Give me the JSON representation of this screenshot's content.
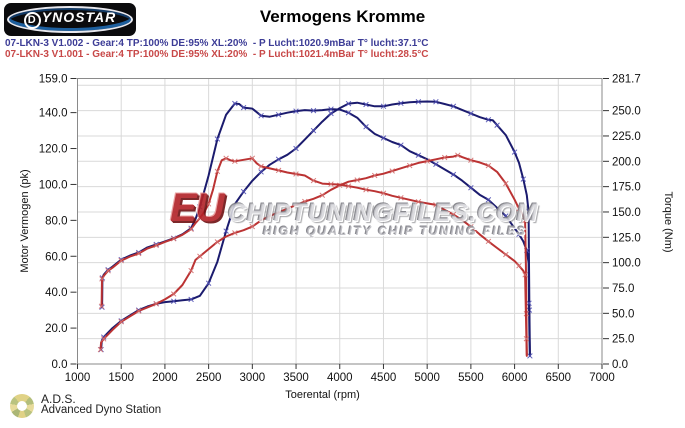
{
  "header": {
    "brand_first_letter": "D",
    "brand_rest": "YNOSTAR",
    "title": "Vermogens Kromme"
  },
  "legend": [
    {
      "text": "07-LKN-3 V1.002 - Gear:4 TP:100% DE:95% XL:20%  - P Lucht:1020.9mBar T° lucht:37.1°C",
      "color": "#3c3c96"
    },
    {
      "text": "07-LKN-3 V1.001 - Gear:4 TP:100% DE:95% XL:20%  - P Lucht:1021.4mBar T° lucht:28.5°C",
      "color": "#c84848"
    }
  ],
  "watermark": {
    "prefix": "EU",
    "main": "CHIPTUNINGFILES.COM",
    "sub": "HIGH QUALITY CHIP TUNING FILES"
  },
  "footer": {
    "abbr": "A.D.S.",
    "name": "Advanced Dyno Station"
  },
  "chart_data": {
    "type": "line",
    "title": "Vermogens Kromme",
    "xlabel": "Toerental (rpm)",
    "xlim": [
      1000,
      7000
    ],
    "x_ticks": [
      1000,
      1500,
      2000,
      2500,
      3000,
      3500,
      4000,
      4500,
      5000,
      5500,
      6000,
      6500,
      7000
    ],
    "left_axis": {
      "label": "Motor Vermogen (pk)",
      "max": 159,
      "ticks": [
        0,
        20,
        40,
        60,
        80,
        100,
        120,
        140,
        159
      ]
    },
    "right_axis": {
      "label": "Torque (Nm)",
      "max": 281.7,
      "ticks": [
        0,
        25,
        50,
        75,
        100,
        125,
        150,
        175,
        200,
        225,
        250,
        281.7
      ]
    },
    "grid_right_values": [
      25,
      50,
      75,
      100,
      125,
      150,
      175,
      200,
      225,
      250,
      275
    ],
    "grid_on": true,
    "legend_position": "top-left-above-plot",
    "colors": {
      "run1": "#1b1b6e",
      "run2": "#bb3333",
      "run1_marker": "#5050b4",
      "run2_marker": "#d47070",
      "grid": "#d9d9d9",
      "border": "#8a8a8a",
      "tick": "#333333",
      "label": "#111111"
    },
    "series": [
      {
        "name": "V1.002-power",
        "axis": "left",
        "unit": "pk",
        "color": "#1b1b6e",
        "marker_color": "#5050b4",
        "points": [
          [
            1270,
            8
          ],
          [
            1278,
            13
          ],
          [
            1300,
            15
          ],
          [
            1400,
            20
          ],
          [
            1500,
            24
          ],
          [
            1600,
            27
          ],
          [
            1700,
            30
          ],
          [
            1800,
            32
          ],
          [
            1900,
            33.5
          ],
          [
            2000,
            34.5
          ],
          [
            2100,
            35
          ],
          [
            2200,
            35.5
          ],
          [
            2300,
            36
          ],
          [
            2400,
            38
          ],
          [
            2500,
            45
          ],
          [
            2600,
            57
          ],
          [
            2700,
            74
          ],
          [
            2800,
            89
          ],
          [
            2900,
            96
          ],
          [
            3000,
            102
          ],
          [
            3100,
            107
          ],
          [
            3200,
            111
          ],
          [
            3300,
            114
          ],
          [
            3400,
            116.5
          ],
          [
            3500,
            120
          ],
          [
            3600,
            125
          ],
          [
            3700,
            130
          ],
          [
            3800,
            135
          ],
          [
            3900,
            139.5
          ],
          [
            4000,
            142.5
          ],
          [
            4100,
            145
          ],
          [
            4200,
            145.5
          ],
          [
            4300,
            144.5
          ],
          [
            4400,
            143.5
          ],
          [
            4500,
            143.5
          ],
          [
            4600,
            144.5
          ],
          [
            4700,
            145.2
          ],
          [
            4800,
            145.8
          ],
          [
            4900,
            146
          ],
          [
            5000,
            146.2
          ],
          [
            5100,
            146
          ],
          [
            5200,
            144.8
          ],
          [
            5300,
            143.5
          ],
          [
            5400,
            141.5
          ],
          [
            5500,
            139.5
          ],
          [
            5600,
            137.5
          ],
          [
            5700,
            136
          ],
          [
            5750,
            135.8
          ],
          [
            5800,
            133
          ],
          [
            5900,
            127.5
          ],
          [
            6000,
            118
          ],
          [
            6050,
            112
          ],
          [
            6100,
            103
          ],
          [
            6140,
            94
          ],
          [
            6160,
            85
          ],
          [
            6165,
            55
          ],
          [
            6170,
            30
          ],
          [
            6175,
            6
          ]
        ]
      },
      {
        "name": "V1.002-torque",
        "axis": "right",
        "unit": "Nm",
        "color": "#1b1b6e",
        "marker_color": "#5050b4",
        "points": [
          [
            1280,
            56
          ],
          [
            1282,
            64
          ],
          [
            1285,
            85
          ],
          [
            1300,
            88
          ],
          [
            1350,
            93
          ],
          [
            1400,
            96
          ],
          [
            1500,
            103
          ],
          [
            1600,
            107
          ],
          [
            1700,
            110
          ],
          [
            1800,
            115
          ],
          [
            1900,
            118
          ],
          [
            2000,
            121
          ],
          [
            2100,
            124
          ],
          [
            2200,
            128
          ],
          [
            2300,
            134
          ],
          [
            2350,
            143
          ],
          [
            2400,
            155
          ],
          [
            2500,
            186
          ],
          [
            2600,
            222
          ],
          [
            2700,
            246
          ],
          [
            2800,
            257
          ],
          [
            2850,
            256.5
          ],
          [
            2900,
            253
          ],
          [
            3000,
            252
          ],
          [
            3100,
            245
          ],
          [
            3200,
            244
          ],
          [
            3300,
            246
          ],
          [
            3400,
            248
          ],
          [
            3500,
            249.5
          ],
          [
            3600,
            250.5
          ],
          [
            3700,
            250
          ],
          [
            3800,
            250.5
          ],
          [
            3900,
            251.5
          ],
          [
            4000,
            251
          ],
          [
            4100,
            248
          ],
          [
            4200,
            243
          ],
          [
            4300,
            234
          ],
          [
            4400,
            227
          ],
          [
            4500,
            223
          ],
          [
            4600,
            219
          ],
          [
            4700,
            216
          ],
          [
            4800,
            210
          ],
          [
            4900,
            206
          ],
          [
            5000,
            202
          ],
          [
            5100,
            197
          ],
          [
            5200,
            192
          ],
          [
            5300,
            187
          ],
          [
            5400,
            181
          ],
          [
            5500,
            174
          ],
          [
            5600,
            167
          ],
          [
            5700,
            162
          ],
          [
            5800,
            154
          ],
          [
            5900,
            146
          ],
          [
            6000,
            134
          ],
          [
            6050,
            128
          ],
          [
            6100,
            121
          ],
          [
            6140,
            112
          ],
          [
            6160,
            100
          ],
          [
            6165,
            60
          ],
          [
            6170,
            30
          ],
          [
            6175,
            8
          ]
        ]
      },
      {
        "name": "V1.001-power",
        "axis": "left",
        "unit": "pk",
        "color": "#bb3333",
        "marker_color": "#d47070",
        "points": [
          [
            1263,
            8
          ],
          [
            1270,
            12
          ],
          [
            1300,
            14
          ],
          [
            1400,
            19
          ],
          [
            1500,
            23.5
          ],
          [
            1600,
            26.5
          ],
          [
            1700,
            29.5
          ],
          [
            1800,
            31.5
          ],
          [
            1900,
            33.5
          ],
          [
            2000,
            36
          ],
          [
            2100,
            39
          ],
          [
            2200,
            44
          ],
          [
            2300,
            52
          ],
          [
            2350,
            58
          ],
          [
            2400,
            60
          ],
          [
            2500,
            64
          ],
          [
            2600,
            68
          ],
          [
            2700,
            71
          ],
          [
            2800,
            73
          ],
          [
            2900,
            74.5
          ],
          [
            3000,
            76.5
          ],
          [
            3100,
            80
          ],
          [
            3200,
            82.5
          ],
          [
            3300,
            84.5
          ],
          [
            3400,
            86.5
          ],
          [
            3500,
            88.5
          ],
          [
            3600,
            90.5
          ],
          [
            3700,
            92
          ],
          [
            3800,
            94
          ],
          [
            3900,
            97
          ],
          [
            4000,
            99.5
          ],
          [
            4100,
            101.5
          ],
          [
            4200,
            102.5
          ],
          [
            4300,
            103.5
          ],
          [
            4400,
            105
          ],
          [
            4500,
            106
          ],
          [
            4600,
            107.5
          ],
          [
            4700,
            109
          ],
          [
            4800,
            110.5
          ],
          [
            4900,
            112
          ],
          [
            5000,
            113
          ],
          [
            5100,
            114
          ],
          [
            5200,
            115
          ],
          [
            5300,
            115.5
          ],
          [
            5350,
            116.3
          ],
          [
            5400,
            115.2
          ],
          [
            5500,
            113.5
          ],
          [
            5600,
            112.3
          ],
          [
            5700,
            110.5
          ],
          [
            5800,
            107
          ],
          [
            5900,
            100.5
          ],
          [
            6000,
            91.5
          ],
          [
            6050,
            86.5
          ],
          [
            6100,
            83
          ],
          [
            6120,
            80
          ],
          [
            6130,
            55
          ],
          [
            6135,
            28
          ],
          [
            6140,
            5
          ]
        ]
      },
      {
        "name": "V1.001-torque",
        "axis": "right",
        "unit": "Nm",
        "color": "#bb3333",
        "marker_color": "#d47070",
        "points": [
          [
            1275,
            57
          ],
          [
            1277,
            63
          ],
          [
            1280,
            84
          ],
          [
            1300,
            87
          ],
          [
            1350,
            92
          ],
          [
            1400,
            95
          ],
          [
            1500,
            102
          ],
          [
            1600,
            106
          ],
          [
            1700,
            109
          ],
          [
            1800,
            114
          ],
          [
            1900,
            117
          ],
          [
            2000,
            120.5
          ],
          [
            2100,
            123.5
          ],
          [
            2200,
            127.5
          ],
          [
            2300,
            133
          ],
          [
            2350,
            139
          ],
          [
            2400,
            144
          ],
          [
            2450,
            150
          ],
          [
            2500,
            158
          ],
          [
            2550,
            172
          ],
          [
            2600,
            190
          ],
          [
            2650,
            201
          ],
          [
            2700,
            203
          ],
          [
            2750,
            201
          ],
          [
            2800,
            200
          ],
          [
            2900,
            201.5
          ],
          [
            3000,
            203
          ],
          [
            3050,
            198
          ],
          [
            3100,
            195
          ],
          [
            3200,
            193
          ],
          [
            3300,
            191
          ],
          [
            3400,
            189
          ],
          [
            3500,
            187.5
          ],
          [
            3600,
            186
          ],
          [
            3700,
            181
          ],
          [
            3800,
            178
          ],
          [
            3900,
            177.5
          ],
          [
            4000,
            177
          ],
          [
            4100,
            175.5
          ],
          [
            4200,
            174
          ],
          [
            4300,
            172
          ],
          [
            4400,
            170.5
          ],
          [
            4500,
            168.5
          ],
          [
            4600,
            166
          ],
          [
            4700,
            164
          ],
          [
            4800,
            162
          ],
          [
            4900,
            160
          ],
          [
            5000,
            158.5
          ],
          [
            5100,
            157
          ],
          [
            5200,
            152
          ],
          [
            5300,
            147.5
          ],
          [
            5400,
            142
          ],
          [
            5500,
            135.5
          ],
          [
            5600,
            128
          ],
          [
            5700,
            121
          ],
          [
            5800,
            114.5
          ],
          [
            5900,
            108
          ],
          [
            6000,
            101.5
          ],
          [
            6050,
            97
          ],
          [
            6100,
            92
          ],
          [
            6120,
            88
          ],
          [
            6130,
            50
          ],
          [
            6135,
            25
          ],
          [
            6140,
            8
          ]
        ]
      }
    ]
  }
}
